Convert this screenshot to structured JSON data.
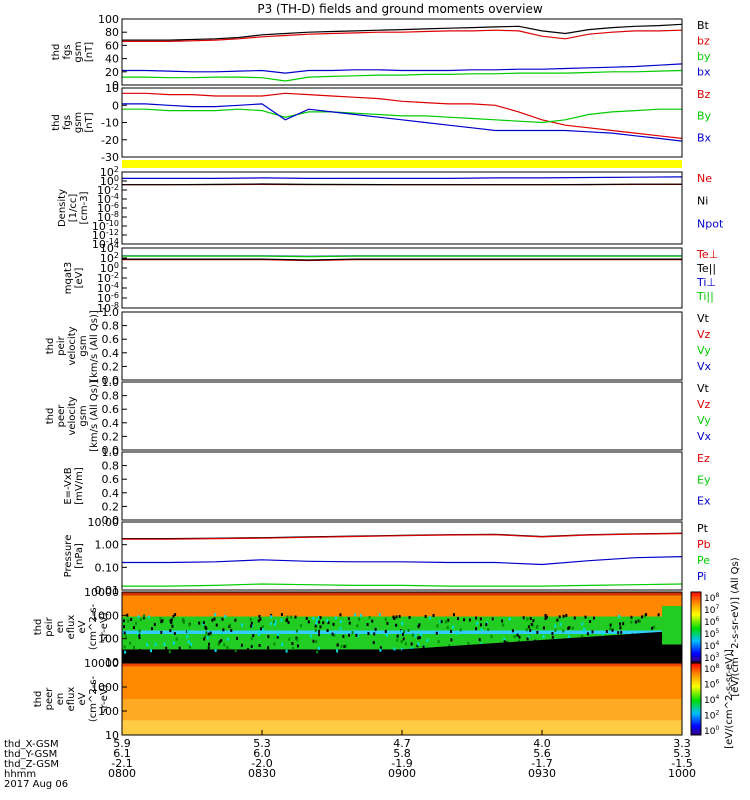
{
  "title": "P3 (TH-D) fields and ground moments overview",
  "colors": {
    "black": "#000000",
    "red": "#dd0000",
    "green": "#00cc00",
    "blue": "#0000cc",
    "yellow": "#ffff00"
  },
  "chart_data": [
    {
      "type": "line",
      "ylabel_lines": [
        "thd",
        "fgs",
        "gsm",
        "[nT]"
      ],
      "ylim": [
        0,
        100
      ],
      "y_ticks": [
        "100",
        "80",
        "60",
        "40",
        "20",
        "0"
      ],
      "legend": [
        "Bt",
        "bz",
        "by",
        "bx"
      ],
      "series": [
        {
          "name": "Bt",
          "color": "black",
          "x": [
            800,
            805,
            810,
            815,
            820,
            825,
            830,
            835,
            840,
            845,
            850,
            855,
            900,
            905,
            910,
            915,
            920,
            925,
            930,
            935,
            940,
            945,
            950,
            955,
            1000
          ],
          "values": [
            68,
            68,
            68,
            69,
            70,
            72,
            76,
            78,
            80,
            81,
            82,
            83,
            84,
            85,
            86,
            87,
            88,
            89,
            82,
            78,
            84,
            87,
            89,
            90,
            92
          ]
        },
        {
          "name": "bz",
          "color": "red",
          "x": [
            800,
            805,
            810,
            815,
            820,
            825,
            830,
            835,
            840,
            845,
            850,
            855,
            900,
            905,
            910,
            915,
            920,
            925,
            930,
            935,
            940,
            945,
            950,
            955,
            1000
          ],
          "values": [
            66,
            66,
            66,
            67,
            68,
            70,
            73,
            75,
            77,
            78,
            79,
            80,
            80,
            81,
            82,
            82,
            83,
            82,
            74,
            70,
            77,
            80,
            82,
            82,
            83
          ]
        },
        {
          "name": "by",
          "color": "green",
          "x": [
            800,
            805,
            810,
            815,
            820,
            825,
            830,
            835,
            840,
            845,
            850,
            855,
            900,
            905,
            910,
            915,
            920,
            925,
            930,
            935,
            940,
            945,
            950,
            955,
            1000
          ],
          "values": [
            12,
            12,
            11,
            11,
            12,
            12,
            11,
            6,
            12,
            13,
            14,
            15,
            15,
            16,
            16,
            17,
            17,
            18,
            18,
            18,
            19,
            20,
            20,
            21,
            22
          ]
        },
        {
          "name": "bx",
          "color": "blue",
          "x": [
            800,
            805,
            810,
            815,
            820,
            825,
            830,
            835,
            840,
            845,
            850,
            855,
            900,
            905,
            910,
            915,
            920,
            925,
            930,
            935,
            940,
            945,
            950,
            955,
            1000
          ],
          "values": [
            22,
            22,
            21,
            20,
            20,
            21,
            22,
            18,
            22,
            22,
            23,
            23,
            22,
            22,
            22,
            23,
            23,
            24,
            24,
            25,
            26,
            27,
            28,
            30,
            32
          ]
        }
      ]
    },
    {
      "type": "line",
      "ylabel_lines": [
        "thd",
        "fgs",
        "gsm",
        "[nT]"
      ],
      "ylim": [
        -38,
        14
      ],
      "y_ticks": [
        "10",
        "0",
        "-10",
        "-20",
        "-30"
      ],
      "legend": [
        "Bz",
        "By",
        "Bx"
      ],
      "series": [
        {
          "name": "Bz",
          "color": "red",
          "x": [
            800,
            805,
            810,
            815,
            820,
            825,
            830,
            835,
            840,
            845,
            850,
            855,
            900,
            905,
            910,
            915,
            920,
            925,
            930,
            935,
            940,
            945,
            950,
            955,
            1000
          ],
          "values": [
            10,
            10,
            9,
            9,
            8,
            8,
            8,
            10,
            9,
            8,
            7,
            6,
            4,
            3,
            2,
            2,
            1,
            -4,
            -10,
            -14,
            -16,
            -18,
            -20,
            -22,
            -24
          ]
        },
        {
          "name": "By",
          "color": "green",
          "x": [
            800,
            805,
            810,
            815,
            820,
            825,
            830,
            835,
            840,
            845,
            850,
            855,
            900,
            905,
            910,
            915,
            920,
            925,
            930,
            935,
            940,
            945,
            950,
            955,
            1000
          ],
          "values": [
            -2,
            -2,
            -3,
            -3,
            -3,
            -2,
            -3,
            -8,
            -4,
            -4,
            -5,
            -6,
            -7,
            -7,
            -8,
            -9,
            -10,
            -11,
            -12,
            -10,
            -6,
            -4,
            -3,
            -2,
            -2
          ]
        },
        {
          "name": "Bx",
          "color": "blue",
          "x": [
            800,
            805,
            810,
            815,
            820,
            825,
            830,
            835,
            840,
            845,
            850,
            855,
            900,
            905,
            910,
            915,
            920,
            925,
            930,
            935,
            940,
            945,
            950,
            955,
            1000
          ],
          "values": [
            2,
            2,
            1,
            0,
            0,
            1,
            2,
            -10,
            -2,
            -4,
            -6,
            -8,
            -10,
            -12,
            -14,
            -16,
            -18,
            -18,
            -18,
            -18,
            -19,
            -20,
            -22,
            -24,
            -26
          ]
        }
      ]
    },
    {
      "type": "line",
      "ylabel_lines": [
        "Density",
        "[1/cc]",
        "[cm-3]"
      ],
      "y_scale": "log",
      "ylim": [
        -15,
        2
      ],
      "y_ticks": [
        "10^2",
        "10^0",
        "10^-2",
        "10^-4",
        "10^-6",
        "10^-8",
        "10^-10",
        "10^-12",
        "10^-14"
      ],
      "legend": [
        "Ne",
        "Ni",
        "Npot"
      ],
      "series": [
        {
          "name": "Ne",
          "color": "red",
          "x": [
            800,
            810,
            820,
            830,
            840,
            850,
            900,
            910,
            920,
            930,
            940,
            950,
            1000
          ],
          "values": [
            0.1,
            0.1,
            0.1,
            0.12,
            0.1,
            0.1,
            0.1,
            0.1,
            0.1,
            0.1,
            0.1,
            0.12,
            0.12
          ]
        },
        {
          "name": "Ni",
          "color": "black",
          "x": [
            800,
            810,
            820,
            830,
            840,
            850,
            900,
            910,
            920,
            930,
            940,
            950,
            1000
          ],
          "values": [
            0.1,
            0.1,
            0.12,
            0.15,
            0.12,
            0.11,
            0.1,
            0.1,
            0.1,
            0.1,
            0.11,
            0.13,
            0.13
          ]
        },
        {
          "name": "Npot",
          "color": "blue",
          "x": [
            800,
            810,
            820,
            830,
            840,
            850,
            900,
            910,
            920,
            930,
            940,
            950,
            1000
          ],
          "values": [
            3,
            3,
            3,
            4,
            3,
            3,
            3,
            3,
            4,
            4,
            5,
            6,
            7
          ]
        }
      ]
    },
    {
      "type": "line",
      "ylabel_lines": [
        "mqat3",
        "[eV]"
      ],
      "y_scale": "log",
      "ylim": [
        -9,
        4
      ],
      "y_ticks": [
        "10^4",
        "10^2",
        "10^0",
        "10^-2",
        "10^-4",
        "10^-6",
        "10^-8"
      ],
      "legend": [
        "Te⊥",
        "Te||",
        "Ti⊥",
        "Ti||"
      ],
      "series": [
        {
          "name": "Te⊥",
          "color": "red",
          "x": [
            800,
            810,
            820,
            830,
            840,
            850,
            900,
            910,
            920,
            930,
            940,
            950,
            1000
          ],
          "values": [
            30,
            30,
            30,
            30,
            20,
            30,
            30,
            30,
            30,
            30,
            30,
            30,
            30
          ]
        },
        {
          "name": "Te||",
          "color": "black",
          "x": [
            800,
            810,
            820,
            830,
            840,
            850,
            900,
            910,
            920,
            930,
            940,
            950,
            1000
          ],
          "values": [
            40,
            40,
            40,
            40,
            25,
            40,
            40,
            40,
            40,
            40,
            40,
            40,
            40
          ]
        },
        {
          "name": "Ti⊥",
          "color": "blue",
          "x": [
            800,
            810,
            820,
            830,
            840,
            850,
            900,
            910,
            920,
            930,
            940,
            950,
            1000
          ],
          "values": [
            200,
            200,
            200,
            200,
            150,
            200,
            200,
            200,
            200,
            200,
            200,
            200,
            200
          ]
        },
        {
          "name": "Ti||",
          "color": "green",
          "x": [
            800,
            810,
            820,
            830,
            840,
            850,
            900,
            910,
            920,
            930,
            940,
            950,
            1000
          ],
          "values": [
            180,
            180,
            180,
            180,
            140,
            180,
            180,
            180,
            180,
            180,
            180,
            180,
            180
          ]
        }
      ]
    },
    {
      "type": "line",
      "ylabel_lines": [
        "thd",
        "peir",
        "velocity",
        "gsm",
        "[km/s (All Qs)]"
      ],
      "ylim": [
        0,
        1
      ],
      "y_ticks": [
        "1.0",
        "0.8",
        "0.6",
        "0.4",
        "0.2",
        "0.0"
      ],
      "legend": [
        "Vt",
        "Vz",
        "Vy",
        "Vx"
      ],
      "series": []
    },
    {
      "type": "line",
      "ylabel_lines": [
        "thd",
        "peer",
        "velocity",
        "gsm",
        "[km/s (All Qs)]"
      ],
      "ylim": [
        0,
        1
      ],
      "y_ticks": [
        "1.0",
        "0.8",
        "0.6",
        "0.4",
        "0.2",
        "0.0"
      ],
      "legend": [
        "Vt",
        "Vz",
        "Vy",
        "Vx"
      ],
      "series": []
    },
    {
      "type": "line",
      "ylabel_lines": [
        "E=-VxB",
        "[mV/m]"
      ],
      "ylim": [
        0,
        1
      ],
      "y_ticks": [
        "1.0",
        "0.8",
        "0.6",
        "0.4",
        "0.2",
        "0.0"
      ],
      "legend": [
        "Ez",
        "Ey",
        "Ex"
      ],
      "series": []
    },
    {
      "type": "line",
      "ylabel_lines": [
        "Pressure",
        "[nPa]"
      ],
      "y_scale": "log",
      "ylim": [
        -2.1,
        1.05
      ],
      "y_ticks": [
        "10.00",
        "1.00",
        "0.10",
        "0.01"
      ],
      "legend": [
        "Pt",
        "Pb",
        "Pe",
        "Pi"
      ],
      "series": [
        {
          "name": "Pt",
          "color": "black",
          "x": [
            800,
            810,
            820,
            830,
            840,
            850,
            900,
            910,
            920,
            930,
            940,
            950,
            1000
          ],
          "values": [
            1.9,
            1.9,
            2.0,
            2.1,
            2.3,
            2.5,
            2.7,
            2.9,
            3.0,
            2.4,
            2.9,
            3.2,
            3.4
          ]
        },
        {
          "name": "Pb",
          "color": "red",
          "x": [
            800,
            810,
            820,
            830,
            840,
            850,
            900,
            910,
            920,
            930,
            940,
            950,
            1000
          ],
          "values": [
            1.8,
            1.8,
            1.9,
            2.0,
            2.2,
            2.4,
            2.6,
            2.8,
            2.9,
            2.3,
            2.8,
            3.1,
            3.3
          ]
        },
        {
          "name": "Pe",
          "color": "green",
          "x": [
            800,
            810,
            820,
            830,
            840,
            850,
            900,
            910,
            920,
            930,
            940,
            950,
            1000
          ],
          "values": [
            0.012,
            0.012,
            0.013,
            0.015,
            0.014,
            0.013,
            0.013,
            0.012,
            0.012,
            0.012,
            0.013,
            0.014,
            0.015
          ]
        },
        {
          "name": "Pi",
          "color": "blue",
          "x": [
            800,
            810,
            820,
            830,
            840,
            850,
            900,
            910,
            920,
            930,
            940,
            950,
            1000
          ],
          "values": [
            0.15,
            0.15,
            0.16,
            0.2,
            0.17,
            0.16,
            0.16,
            0.15,
            0.15,
            0.12,
            0.18,
            0.25,
            0.28
          ]
        }
      ]
    },
    {
      "type": "heatmap",
      "ylabel_lines": [
        "thd",
        "peir",
        "en",
        "eflux",
        "eV",
        "(cm^2-s-",
        "sr-eV)"
      ],
      "y_scale": "log",
      "y_ticks": [
        "10000",
        "1000",
        "100",
        "10"
      ],
      "colorbar_ticks": [
        "10^8",
        "10^7",
        "10^6",
        "10^5",
        "10^4",
        "10^3"
      ],
      "colorbar_label": "[eV/(cm^2-s-sr-eV)] (All Qs)"
    },
    {
      "type": "heatmap",
      "ylabel_lines": [
        "thd",
        "peer",
        "en",
        "eflux",
        "eV",
        "(cm^2-s-",
        "sr-eV)"
      ],
      "y_scale": "log",
      "y_ticks": [
        "10000",
        "1000",
        "100",
        "10"
      ],
      "colorbar_ticks": [
        "10^8",
        "10^6",
        "10^4",
        "10^2",
        "10^0"
      ],
      "colorbar_label": "[eV/(cm^2-s-sr-eV)]"
    }
  ],
  "xaxis": {
    "rows": [
      {
        "label": "thd_X-GSM",
        "values": [
          "5.9",
          "5.3",
          "4.7",
          "4.0",
          "3.3"
        ]
      },
      {
        "label": "thd_Y-GSM",
        "values": [
          "6.1",
          "6.0",
          "5.8",
          "5.6",
          "5.3"
        ]
      },
      {
        "label": "thd_Z-GSM",
        "values": [
          "-2.1",
          "-2.0",
          "-1.9",
          "-1.7",
          "-1.5"
        ]
      },
      {
        "label": "hhmm",
        "values": [
          "0800",
          "0830",
          "0900",
          "0930",
          "1000"
        ]
      }
    ],
    "date": "2017 Aug 06"
  }
}
